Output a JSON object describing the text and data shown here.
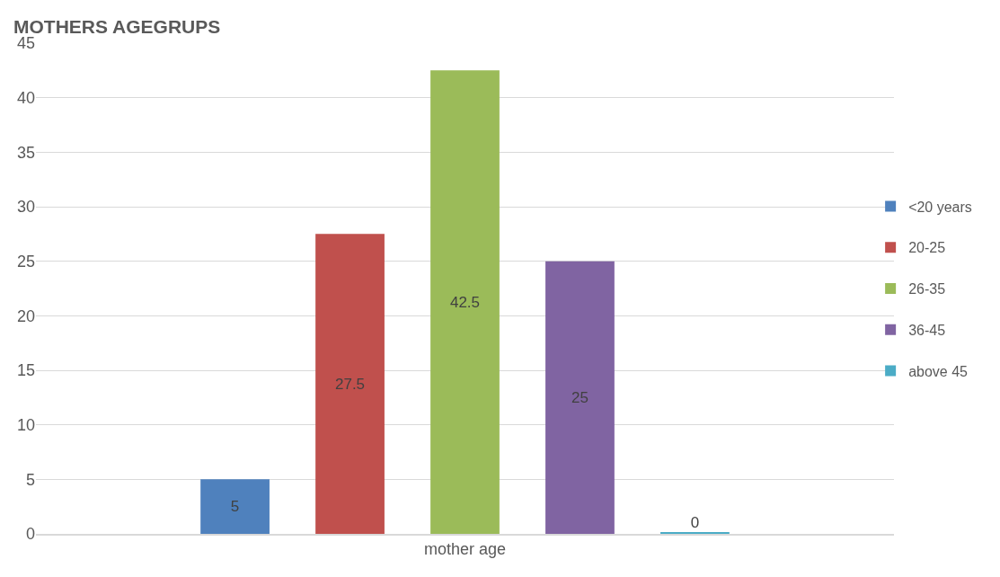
{
  "chart_data": {
    "type": "bar",
    "title": "MOTHERS AGEGRUPS",
    "categories": [
      "mother age"
    ],
    "series": [
      {
        "name": "<20 years",
        "color": "#4f81bd",
        "values": [
          5
        ]
      },
      {
        "name": "20-25",
        "color": "#c0504d",
        "values": [
          27.5
        ]
      },
      {
        "name": "26-35",
        "color": "#9bbb59",
        "values": [
          42.5
        ]
      },
      {
        "name": "36-45",
        "color": "#8064a2",
        "values": [
          25
        ]
      },
      {
        "name": "above 45",
        "color": "#4bacc6",
        "values": [
          0
        ]
      }
    ],
    "ylim": [
      0,
      45
    ],
    "yticks": [
      0,
      5,
      10,
      15,
      20,
      25,
      30,
      35,
      40,
      45
    ],
    "grid": "y",
    "legend": "right",
    "data_labels": true
  }
}
